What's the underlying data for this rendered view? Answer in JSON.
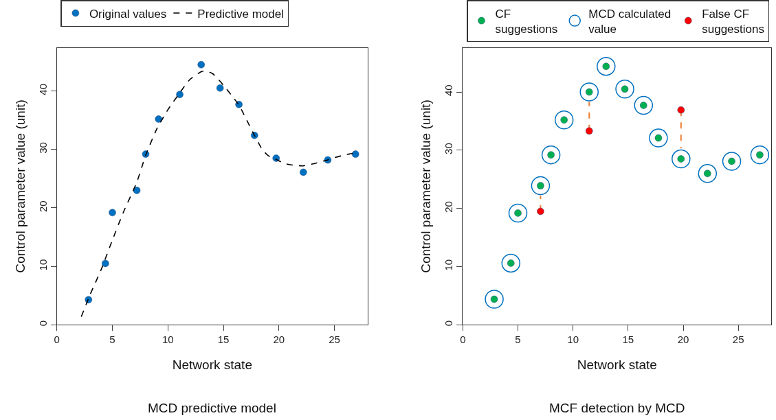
{
  "chart_data": [
    {
      "type": "scatter",
      "title": "MCD predictive model",
      "xlabel": "Network state",
      "ylabel": "Control parameter value (unit)",
      "xlim": [
        0,
        28
      ],
      "xticks": [
        0,
        5,
        10,
        15,
        20,
        25
      ],
      "ylim": [
        0,
        47.4
      ],
      "yticks": [
        0,
        10,
        20,
        30,
        40
      ],
      "legend": "top",
      "series": [
        {
          "name": "Original values",
          "color": "#0070c0",
          "marker": "circle",
          "x": [
            2.85,
            4.37,
            5.0,
            7.2,
            8.0,
            9.16,
            11.07,
            13.0,
            14.7,
            16.4,
            17.8,
            19.75,
            22.2,
            24.4,
            26.9
          ],
          "values": [
            4.3,
            10.5,
            19.2,
            23.0,
            29.2,
            35.2,
            39.4,
            44.5,
            40.5,
            37.7,
            32.4,
            28.5,
            26.1,
            28.2,
            29.2
          ]
        },
        {
          "name": "Predictive model",
          "type": "line",
          "color": "#000000",
          "marker": "none",
          "line_style": "dashed",
          "x": [
            2.2,
            3,
            4,
            5,
            6,
            7.2,
            8,
            9,
            10,
            11,
            12,
            13,
            13.3,
            14,
            15,
            16,
            16.4,
            17,
            17.8,
            18.5,
            19,
            19.75,
            20.5,
            21,
            22,
            22.2,
            23,
            24,
            24.4,
            25,
            26,
            26.9
          ],
          "values": [
            1.4,
            5.2,
            9.5,
            14.5,
            19.3,
            24.4,
            29.0,
            33.5,
            36.8,
            39.5,
            42.0,
            43.3,
            43.4,
            43.0,
            41.0,
            38.6,
            37.6,
            35.4,
            32.4,
            30.0,
            29.0,
            28.3,
            27.6,
            27.4,
            27.2,
            27.2,
            27.5,
            28.0,
            28.2,
            28.6,
            29.1,
            29.4
          ]
        }
      ]
    },
    {
      "type": "scatter",
      "title": "MCF detection by MCD",
      "xlabel": "Network state",
      "ylabel": "Control parameter value (unit)",
      "xlim": [
        0,
        28
      ],
      "xticks": [
        0,
        5,
        10,
        15,
        20,
        25
      ],
      "ylim": [
        0,
        47.6
      ],
      "yticks": [
        0,
        10,
        20,
        30,
        40
      ],
      "legend": "top",
      "series": [
        {
          "type": "line",
          "color": "#ed7d31",
          "marker": "none",
          "line_style": "dashed",
          "x": [
            7.05,
            7.05,
            null,
            11.47,
            11.47,
            null,
            19.8,
            19.8
          ],
          "values": [
            19.5,
            22.2,
            null,
            33.3,
            38.3,
            null,
            36.9,
            30.3
          ]
        },
        {
          "name": "CF suggestions",
          "color": "#00b050",
          "marker": "circle",
          "x": [
            2.85,
            4.36,
            5.0,
            7.05,
            8.0,
            9.19,
            11.47,
            13.0,
            14.7,
            16.4,
            17.75,
            19.8,
            22.2,
            24.4,
            26.95
          ],
          "values": [
            4.4,
            10.6,
            19.2,
            23.9,
            29.2,
            35.2,
            40.0,
            44.4,
            40.5,
            37.7,
            32.1,
            28.5,
            26.0,
            28.1,
            29.2
          ]
        },
        {
          "name": "MCD calculated value",
          "color": "#0070c0",
          "marker": "circle-open",
          "x": [
            2.85,
            4.36,
            5.0,
            7.05,
            8.0,
            9.19,
            11.47,
            13.0,
            14.7,
            16.4,
            17.75,
            19.8,
            22.2,
            24.4,
            26.95
          ],
          "values": [
            4.4,
            10.6,
            19.2,
            23.9,
            29.2,
            35.2,
            40.0,
            44.4,
            40.5,
            37.7,
            32.1,
            28.5,
            26.0,
            28.1,
            29.2
          ]
        },
        {
          "name": "False CF suggestions",
          "color": "#ff0000",
          "marker": "circle",
          "x": [
            7.05,
            11.47,
            19.8
          ],
          "values": [
            19.5,
            33.3,
            36.9
          ]
        }
      ]
    }
  ]
}
